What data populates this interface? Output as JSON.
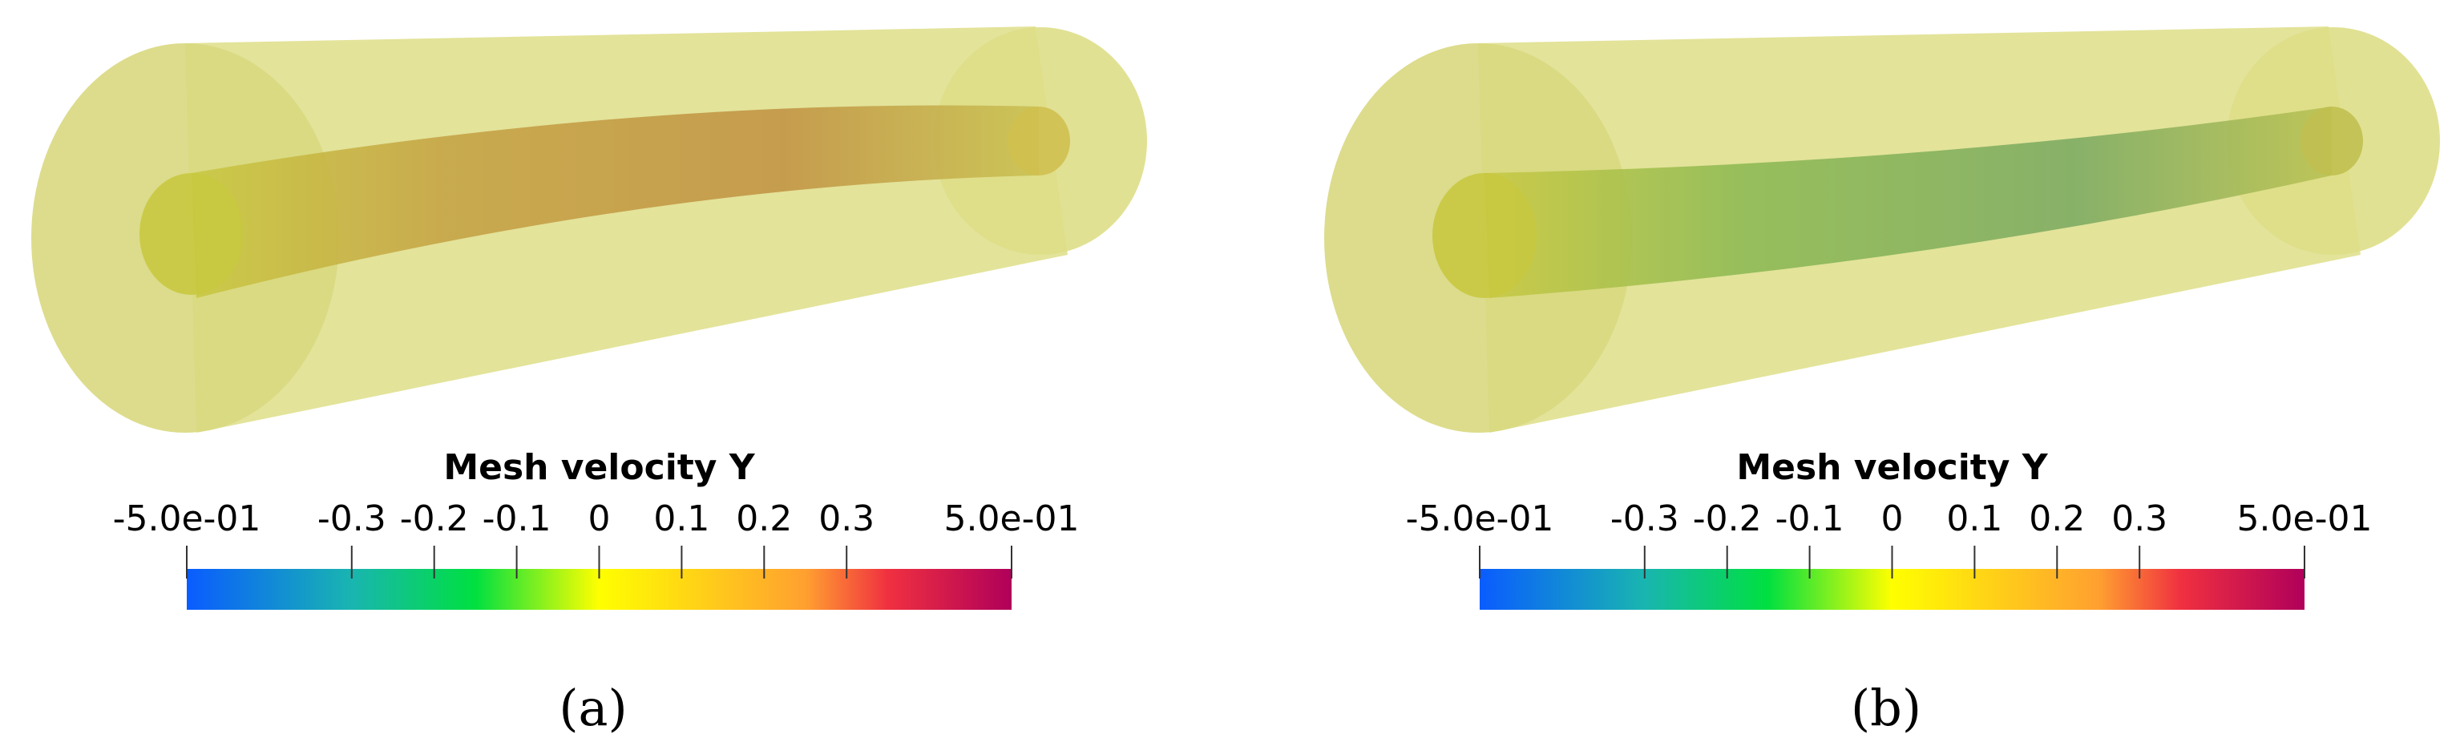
{
  "panels": [
    {
      "colorbar": {
        "title": "Mesh velocity Y",
        "range": [
          -0.5,
          0.5
        ],
        "ticks": [
          {
            "value": -0.5,
            "label": "-5.0e-01"
          },
          -0.3,
          -0.2,
          -0.1,
          0,
          0.1,
          0.2,
          0.3,
          {
            "value": 0.5,
            "label": "5.0e-01"
          }
        ]
      },
      "caption": "(a)"
    },
    {
      "colorbar": {
        "title": "Mesh velocity Y",
        "range": [
          -0.5,
          0.5
        ],
        "ticks": [
          {
            "value": -0.5,
            "label": "-5.0e-01"
          },
          -0.3,
          -0.2,
          -0.1,
          0,
          0.1,
          0.2,
          0.3,
          {
            "value": 0.5,
            "label": "5.0e-01"
          }
        ]
      },
      "caption": "(b)"
    }
  ]
}
